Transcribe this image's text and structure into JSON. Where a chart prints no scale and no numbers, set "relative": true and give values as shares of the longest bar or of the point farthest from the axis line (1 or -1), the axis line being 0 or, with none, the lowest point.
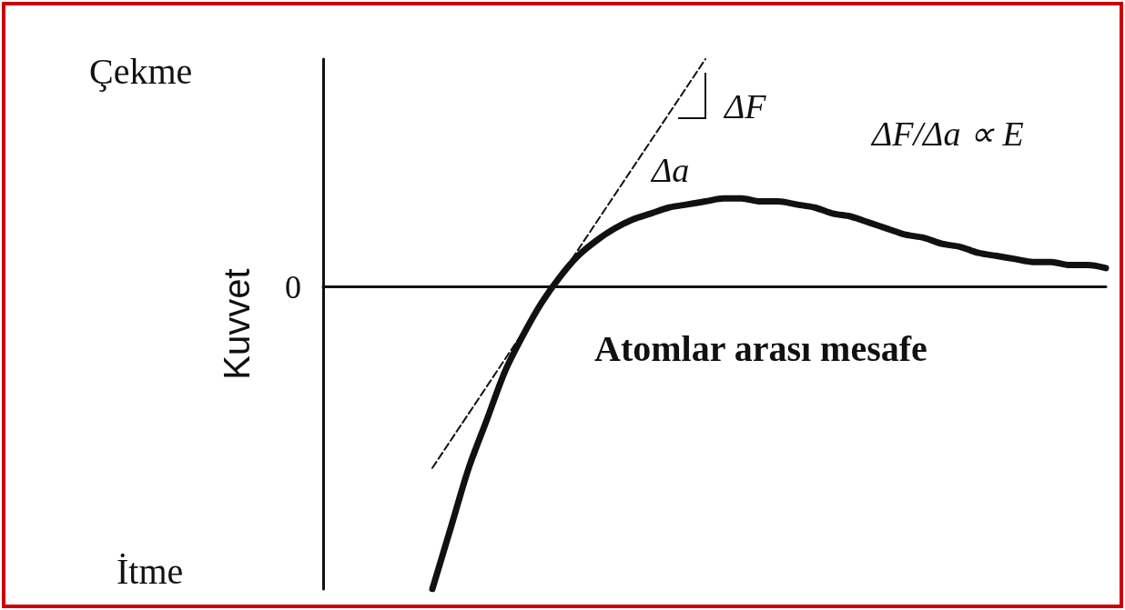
{
  "chart_data": {
    "type": "line",
    "relative": true,
    "xlabel": "Atomlar arası mesafe",
    "ylabel": "Kuvvet",
    "categories": [
      null,
      null,
      null,
      null,
      null,
      null,
      null,
      null,
      null,
      null,
      null,
      null,
      null,
      null,
      null,
      null,
      null,
      null,
      null,
      null,
      null,
      null,
      null,
      null,
      null,
      null,
      null,
      null,
      null,
      null,
      null,
      null,
      null,
      null,
      null,
      null,
      null,
      null,
      null,
      null,
      null,
      null,
      null,
      null
    ],
    "series": [
      {
        "color": "#111111",
        "values": [
          null,
          null,
          null,
          null,
          null,
          null,
          -1.0,
          -0.8,
          -0.6,
          -0.44,
          -0.28,
          -0.16,
          -0.055,
          0.03,
          0.1,
          0.15,
          0.19,
          0.22,
          0.24,
          0.26,
          0.27,
          0.28,
          0.29,
          0.29,
          0.28,
          0.28,
          0.27,
          0.26,
          0.24,
          0.23,
          0.21,
          0.19,
          0.17,
          0.16,
          0.14,
          0.13,
          0.11,
          0.1,
          0.09,
          0.08,
          0.08,
          0.07,
          0.07,
          0.06
        ]
      },
      {
        "color": "#111111",
        "line_style": "dashed",
        "values": [
          null,
          null,
          null,
          null,
          null,
          null,
          -0.6,
          null,
          null,
          null,
          null,
          null,
          null,
          null,
          null,
          null,
          null,
          null,
          null,
          null,
          null,
          0.75,
          null,
          null,
          null,
          null,
          null,
          null,
          null,
          null,
          null,
          null,
          null,
          null,
          null,
          null,
          null,
          null,
          null,
          null,
          null,
          null,
          null,
          null
        ]
      }
    ],
    "annotations": [
      "Çekme",
      "İtme",
      "0",
      "ΔF",
      "Δa",
      "ΔF/Δa ∝ E"
    ]
  }
}
